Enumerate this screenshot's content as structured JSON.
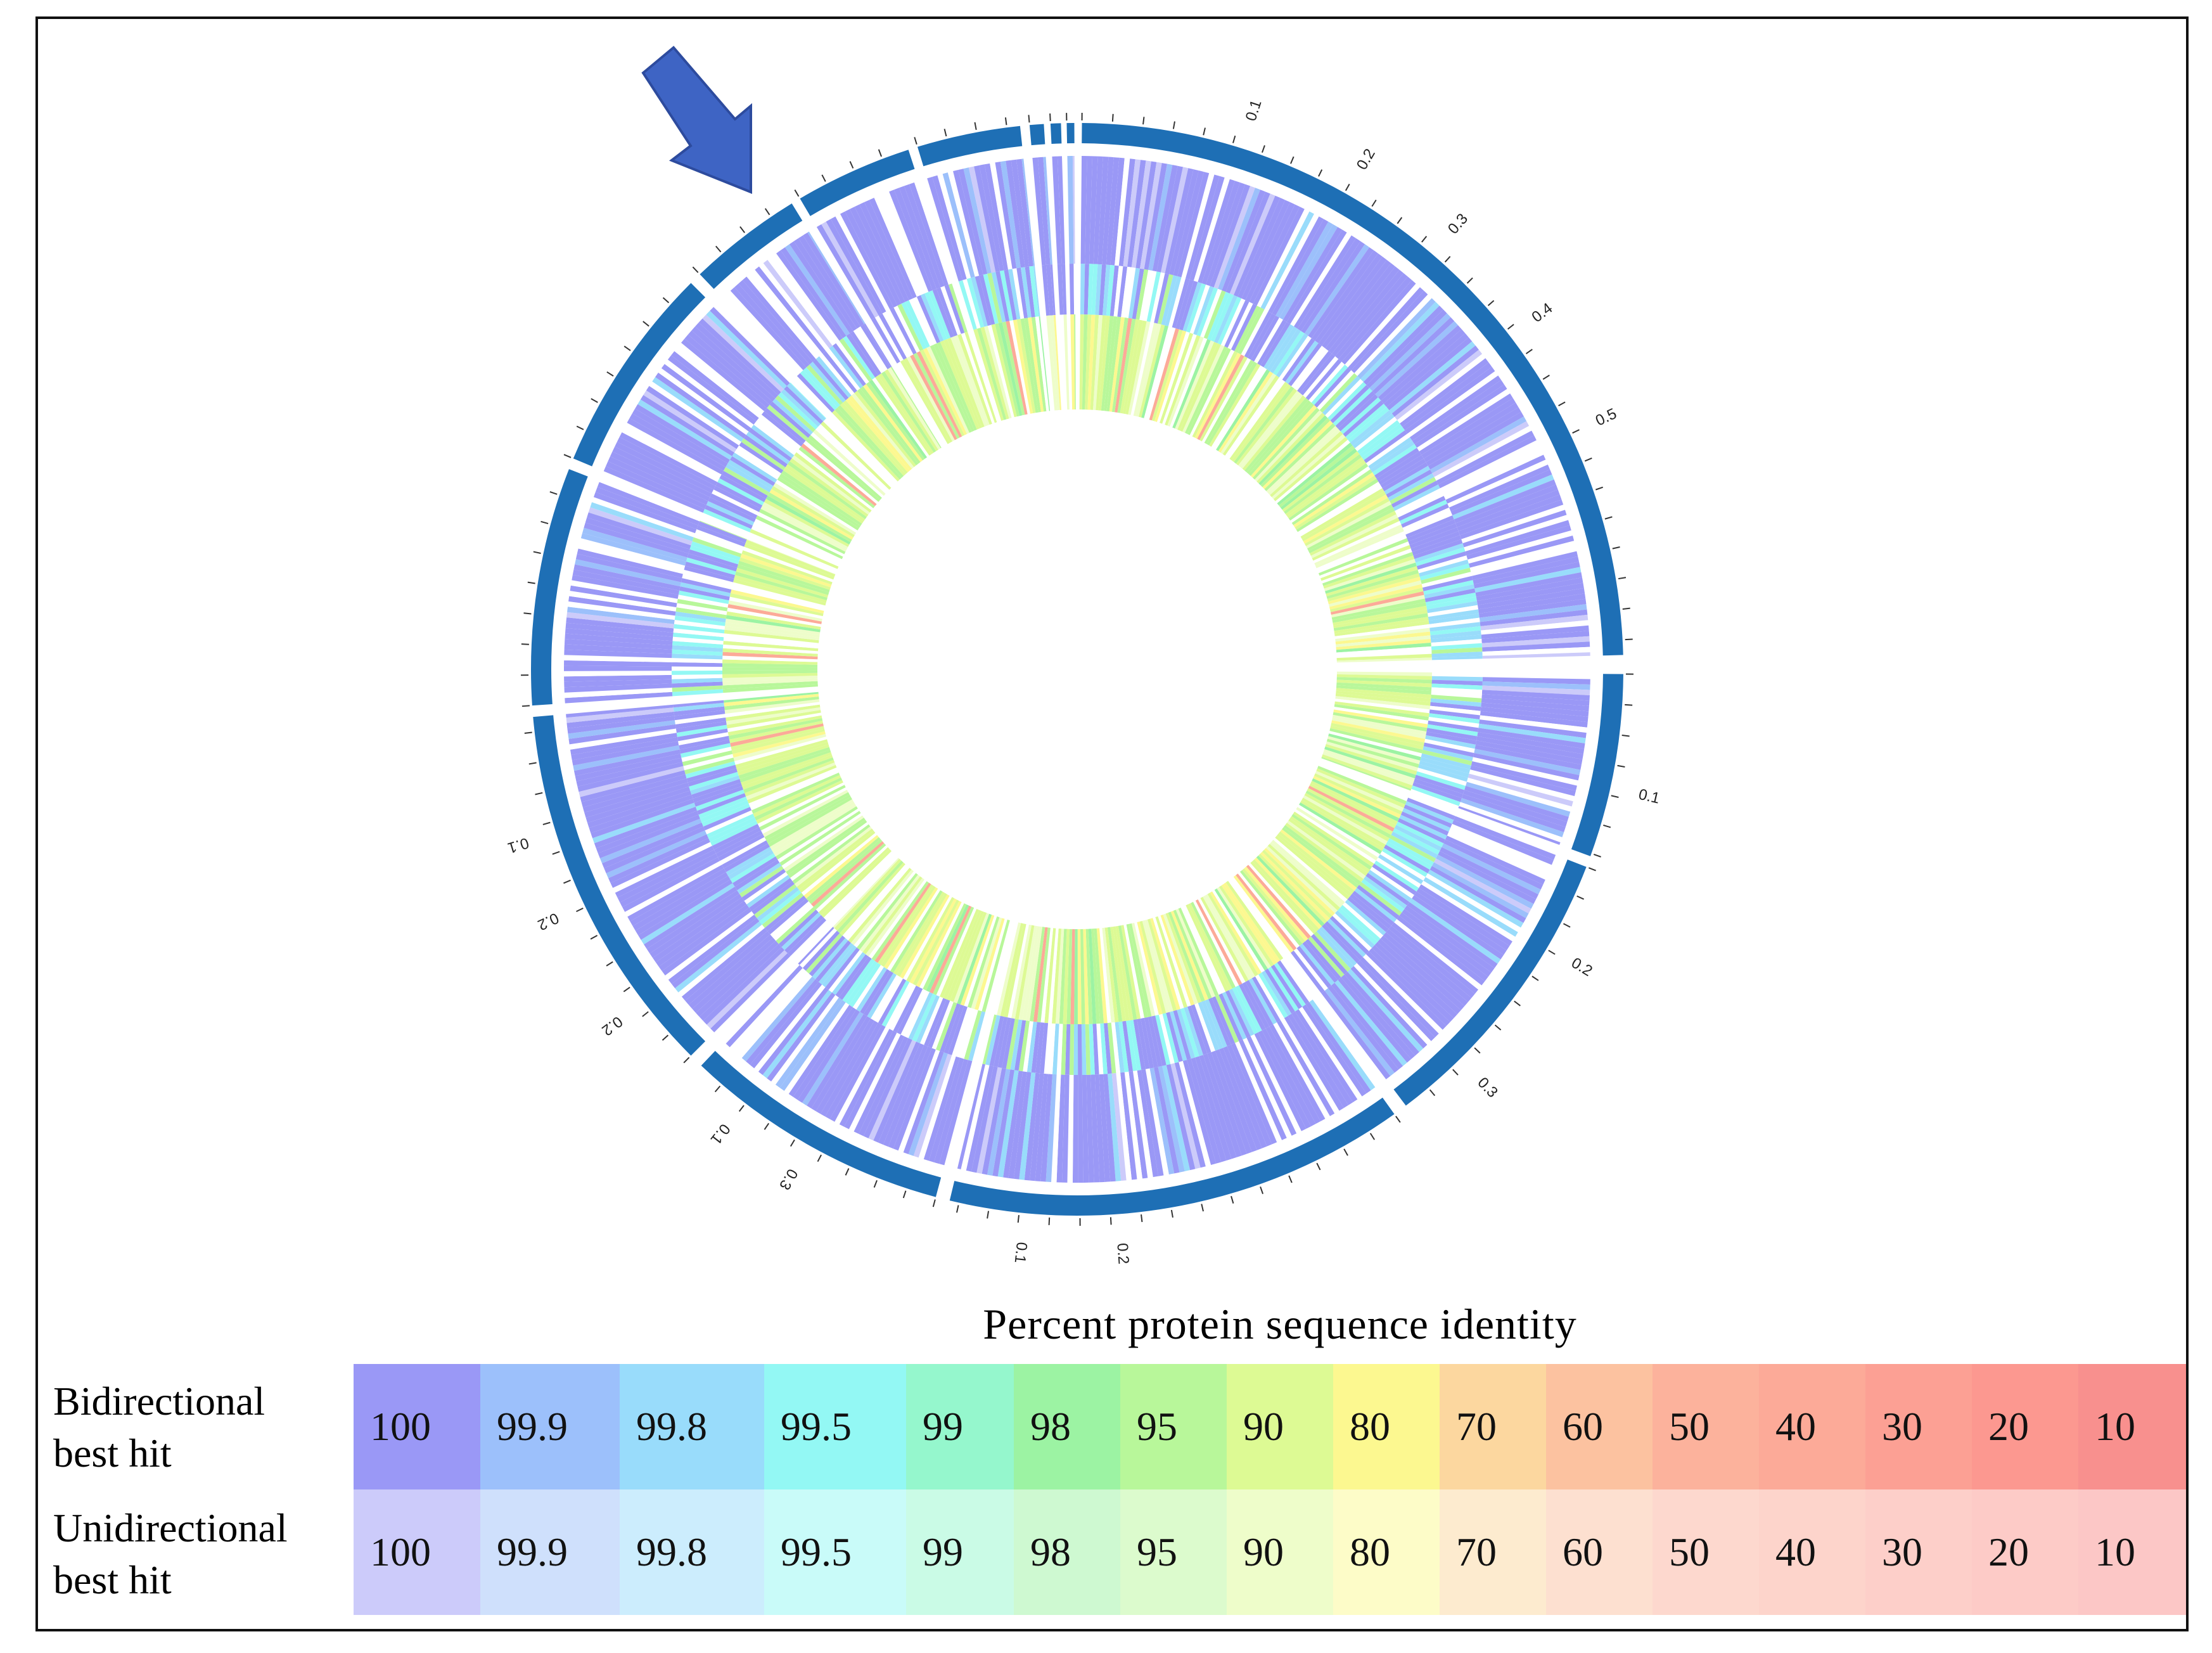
{
  "figure": {
    "legend_title": "Percent protein sequence identity",
    "row_labels": {
      "bidirectional": [
        "Bidirectional",
        "best hit"
      ],
      "unidirectional": [
        "Unidirectional",
        "best hit"
      ]
    },
    "identity_levels": [
      "100",
      "99.9",
      "99.8",
      "99.5",
      "99",
      "98",
      "95",
      "90",
      "80",
      "70",
      "60",
      "50",
      "40",
      "30",
      "20",
      "10"
    ],
    "bidirectional_colors": [
      "#9a98f6",
      "#9cc0fb",
      "#99dcfb",
      "#93f8f4",
      "#95f7cd",
      "#9cf3a3",
      "#b8f79a",
      "#ddfa94",
      "#fcf890",
      "#fcd79f",
      "#fcc2a0",
      "#fcb29c",
      "#fcaa98",
      "#fca094",
      "#fc9890",
      "#f8908e"
    ],
    "unidirectional_colors": [
      "#cccbfa",
      "#cfe0fc",
      "#ccedfd",
      "#c9fbf9",
      "#cafbe6",
      "#cef9d1",
      "#dcfbcd",
      "#eefdca",
      "#fdfcc8",
      "#fdebcf",
      "#fde0d0",
      "#fdd8ce",
      "#fdd4cb",
      "#fdcfc9",
      "#fdcbc7",
      "#fcc7c6"
    ],
    "track_ring_color": "#1e6fb5",
    "arrow_color": "#3e64c4",
    "scale_labels": [
      "0.1",
      "0.2",
      "0.3",
      "0.4",
      "0.5",
      "0.1",
      "0.2",
      "0.3",
      "0.1",
      "0.2",
      "0.3",
      "0.2",
      "0.1",
      "0.1",
      "0.2"
    ]
  }
}
